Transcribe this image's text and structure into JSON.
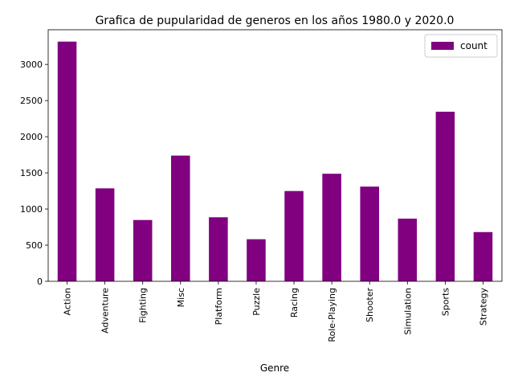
{
  "chart_data": {
    "type": "bar",
    "title": "Grafica de pupularidad de generos en los años 1980.0 y 2020.0",
    "xlabel": "Genre",
    "ylabel": "",
    "categories": [
      "Action",
      "Adventure",
      "Fighting",
      "Misc",
      "Platform",
      "Puzzle",
      "Racing",
      "Role-Playing",
      "Shooter",
      "Simulation",
      "Sports",
      "Strategy"
    ],
    "series": [
      {
        "name": "count",
        "values": [
          3316,
          1286,
          848,
          1739,
          886,
          582,
          1249,
          1488,
          1310,
          867,
          2346,
          681
        ]
      }
    ],
    "ylim": [
      0,
      3480
    ],
    "yticks": [
      0,
      500,
      1000,
      1500,
      2000,
      2500,
      3000
    ],
    "colors": {
      "bar": "#800080",
      "axis": "#000000",
      "legend_border": "#cccccc"
    },
    "grid": false,
    "legend_position": "top-right"
  }
}
